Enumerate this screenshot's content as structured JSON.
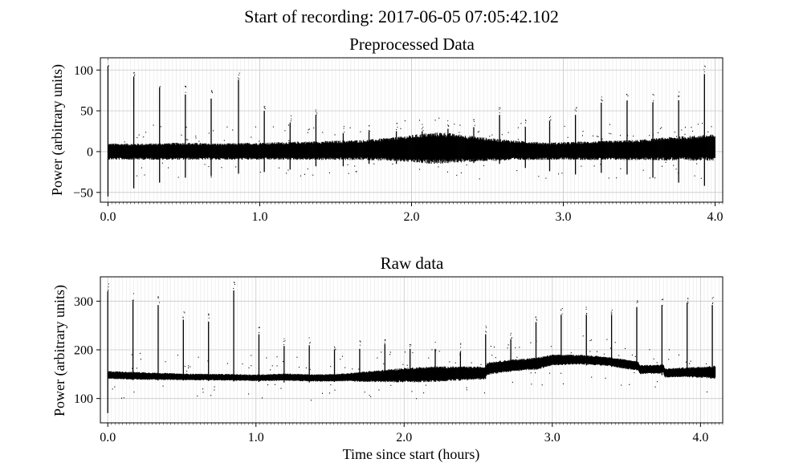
{
  "figure": {
    "suptitle": "Start of recording: 2017-06-05 07:05:42.102"
  },
  "chart_data": [
    {
      "type": "scatter",
      "title": "Preprocessed Data",
      "xlabel": "",
      "ylabel": "Power (arbitrary units)",
      "xlim": [
        -0.05,
        4.05
      ],
      "ylim": [
        -62,
        115
      ],
      "xticks": [
        0.0,
        1.0,
        2.0,
        3.0,
        4.0
      ],
      "xtick_labels": [
        "0.0",
        "1.0",
        "2.0",
        "3.0",
        "4.0"
      ],
      "yticks": [
        100,
        50,
        0,
        -50
      ],
      "ytick_labels": [
        "100",
        "50",
        "0",
        "−50"
      ],
      "grid": true,
      "legend": "none",
      "series": [
        {
          "kind": "band",
          "x": [
            0.0,
            0.25,
            0.5,
            0.75,
            1.0,
            1.25,
            1.5,
            1.7,
            1.9,
            2.0,
            2.1,
            2.2,
            2.3,
            2.5,
            2.7,
            2.9,
            3.1,
            3.3,
            3.5,
            3.7,
            4.0
          ],
          "hi": [
            8,
            8,
            9,
            8,
            9,
            10,
            11,
            12,
            15,
            17,
            19,
            20,
            18,
            14,
            11,
            9,
            10,
            11,
            12,
            15,
            18
          ],
          "lo": [
            -8,
            -8,
            -8,
            -8,
            -8,
            -8,
            -8,
            -8,
            -9,
            -10,
            -11,
            -11,
            -10,
            -9,
            -8,
            -8,
            -8,
            -8,
            -8,
            -8,
            -8
          ]
        },
        {
          "kind": "spikes",
          "x": [
            0.0,
            0.17,
            0.34,
            0.51,
            0.68,
            0.86,
            1.03,
            1.2,
            1.37,
            1.55,
            1.72,
            1.9,
            2.07,
            2.24,
            2.41,
            2.58,
            2.75,
            2.91,
            3.08,
            3.25,
            3.42,
            3.59,
            3.76,
            3.93
          ],
          "high": [
            105,
            92,
            78,
            70,
            65,
            88,
            50,
            35,
            45,
            22,
            25,
            25,
            25,
            28,
            30,
            45,
            30,
            38,
            45,
            60,
            62,
            60,
            63,
            95
          ],
          "low": [
            -55,
            -45,
            -38,
            -32,
            -30,
            -27,
            -25,
            -22,
            -18,
            -18,
            -15,
            -15,
            -14,
            -14,
            -14,
            -15,
            -20,
            -24,
            -28,
            -26,
            -28,
            -32,
            -38,
            -42
          ]
        }
      ]
    },
    {
      "type": "scatter",
      "title": "Raw data",
      "xlabel": "Time since start (hours)",
      "ylabel": "Power (arbitrary units)",
      "xlim": [
        -0.05,
        4.15
      ],
      "ylim": [
        50,
        350
      ],
      "xticks": [
        0.0,
        1.0,
        2.0,
        3.0,
        4.0
      ],
      "xtick_labels": [
        "0.0",
        "1.0",
        "2.0",
        "3.0",
        "4.0"
      ],
      "yticks": [
        300,
        200,
        100
      ],
      "ytick_labels": [
        "300",
        "200",
        "100"
      ],
      "grid": true,
      "legend": "none",
      "series": [
        {
          "kind": "band",
          "x": [
            0.0,
            0.2,
            0.5,
            0.8,
            1.0,
            1.2,
            1.4,
            1.6,
            1.8,
            2.0,
            2.2,
            2.4,
            2.55,
            2.56,
            2.7,
            2.9,
            3.0,
            3.2,
            3.4,
            3.5,
            3.58,
            3.59,
            3.75,
            3.76,
            3.9,
            4.1
          ],
          "hi": [
            155,
            153,
            150,
            149,
            148,
            150,
            148,
            150,
            155,
            160,
            163,
            163,
            163,
            172,
            177,
            182,
            188,
            188,
            183,
            178,
            175,
            167,
            168,
            160,
            162,
            165
          ],
          "lo": [
            142,
            140,
            139,
            138,
            137,
            138,
            136,
            137,
            136,
            136,
            137,
            140,
            142,
            151,
            157,
            162,
            170,
            172,
            168,
            162,
            160,
            152,
            153,
            145,
            146,
            143
          ]
        },
        {
          "kind": "spikes",
          "x": [
            0.0,
            0.17,
            0.34,
            0.51,
            0.68,
            0.85,
            1.02,
            1.19,
            1.36,
            1.53,
            1.7,
            1.87,
            2.04,
            2.21,
            2.38,
            2.55,
            2.72,
            2.89,
            3.06,
            3.23,
            3.4,
            3.57,
            3.74,
            3.91,
            4.08
          ],
          "high": [
            320,
            300,
            292,
            262,
            258,
            322,
            232,
            208,
            208,
            200,
            202,
            212,
            202,
            200,
            196,
            232,
            222,
            257,
            272,
            272,
            272,
            287,
            292,
            297,
            292
          ],
          "low": [
            70,
            138,
            137,
            137,
            136,
            135,
            134,
            133,
            133,
            134,
            135,
            135,
            136,
            138,
            140,
            150,
            156,
            168,
            170,
            168,
            165,
            158,
            148,
            146,
            142
          ]
        }
      ]
    }
  ]
}
